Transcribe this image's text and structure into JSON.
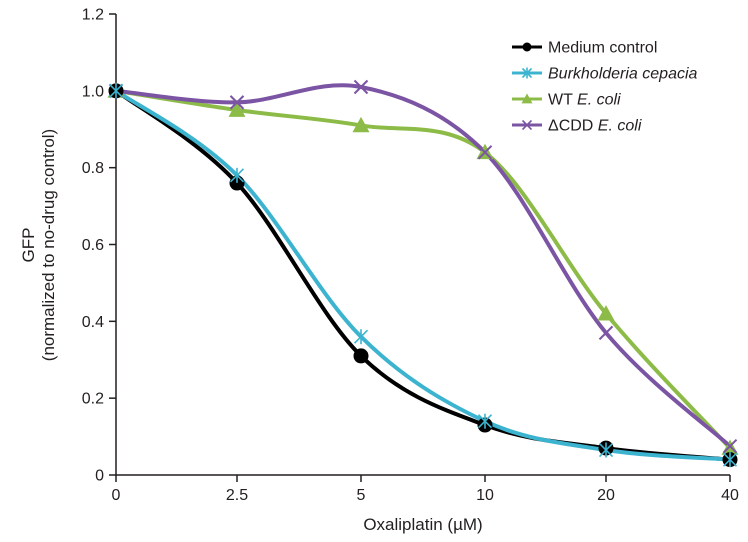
{
  "chart_data": {
    "type": "line",
    "xlabel": "Oxaliplatin (µM)",
    "ylabel_line1": "GFP",
    "ylabel_line2": "(normalized to no-drug control)",
    "categories": [
      "0",
      "2.5",
      "5",
      "10",
      "20",
      "40"
    ],
    "ylim": [
      0,
      1.2
    ],
    "yticks": [
      "0",
      "0.2",
      "0.4",
      "0.6",
      "0.8",
      "1.0",
      "1.2"
    ],
    "ytick_values": [
      0,
      0.2,
      0.4,
      0.6,
      0.8,
      1.0,
      1.2
    ],
    "grid": false,
    "legend_position": "top-right",
    "series": [
      {
        "key": "medium-control",
        "name": "Medium control",
        "name_parts": [
          {
            "text": "Medium control",
            "italic": false
          }
        ],
        "color": "#000000",
        "marker": "circle",
        "values": [
          1.0,
          0.76,
          0.31,
          0.13,
          0.07,
          0.04
        ]
      },
      {
        "key": "burkholderia-cepacia",
        "name": "Burkholderia cepacia",
        "name_parts": [
          {
            "text": "Burkholderia cepacia",
            "italic": true
          }
        ],
        "color": "#3cb4cf",
        "marker": "star",
        "values": [
          1.0,
          0.78,
          0.36,
          0.14,
          0.065,
          0.04
        ]
      },
      {
        "key": "wt-e-coli",
        "name": "WT E. coli",
        "name_parts": [
          {
            "text": "WT ",
            "italic": false
          },
          {
            "text": "E. coli",
            "italic": true
          }
        ],
        "color": "#8dbb47",
        "marker": "triangle",
        "values": [
          1.0,
          0.95,
          0.91,
          0.84,
          0.42,
          0.07
        ]
      },
      {
        "key": "dcdd-e-coli",
        "name": "ΔCDD E. coli",
        "name_parts": [
          {
            "text": "ΔCDD ",
            "italic": false
          },
          {
            "text": "E. coli",
            "italic": true
          }
        ],
        "color": "#7b55a3",
        "marker": "x",
        "values": [
          1.0,
          0.97,
          1.01,
          0.84,
          0.37,
          0.075
        ]
      }
    ]
  }
}
